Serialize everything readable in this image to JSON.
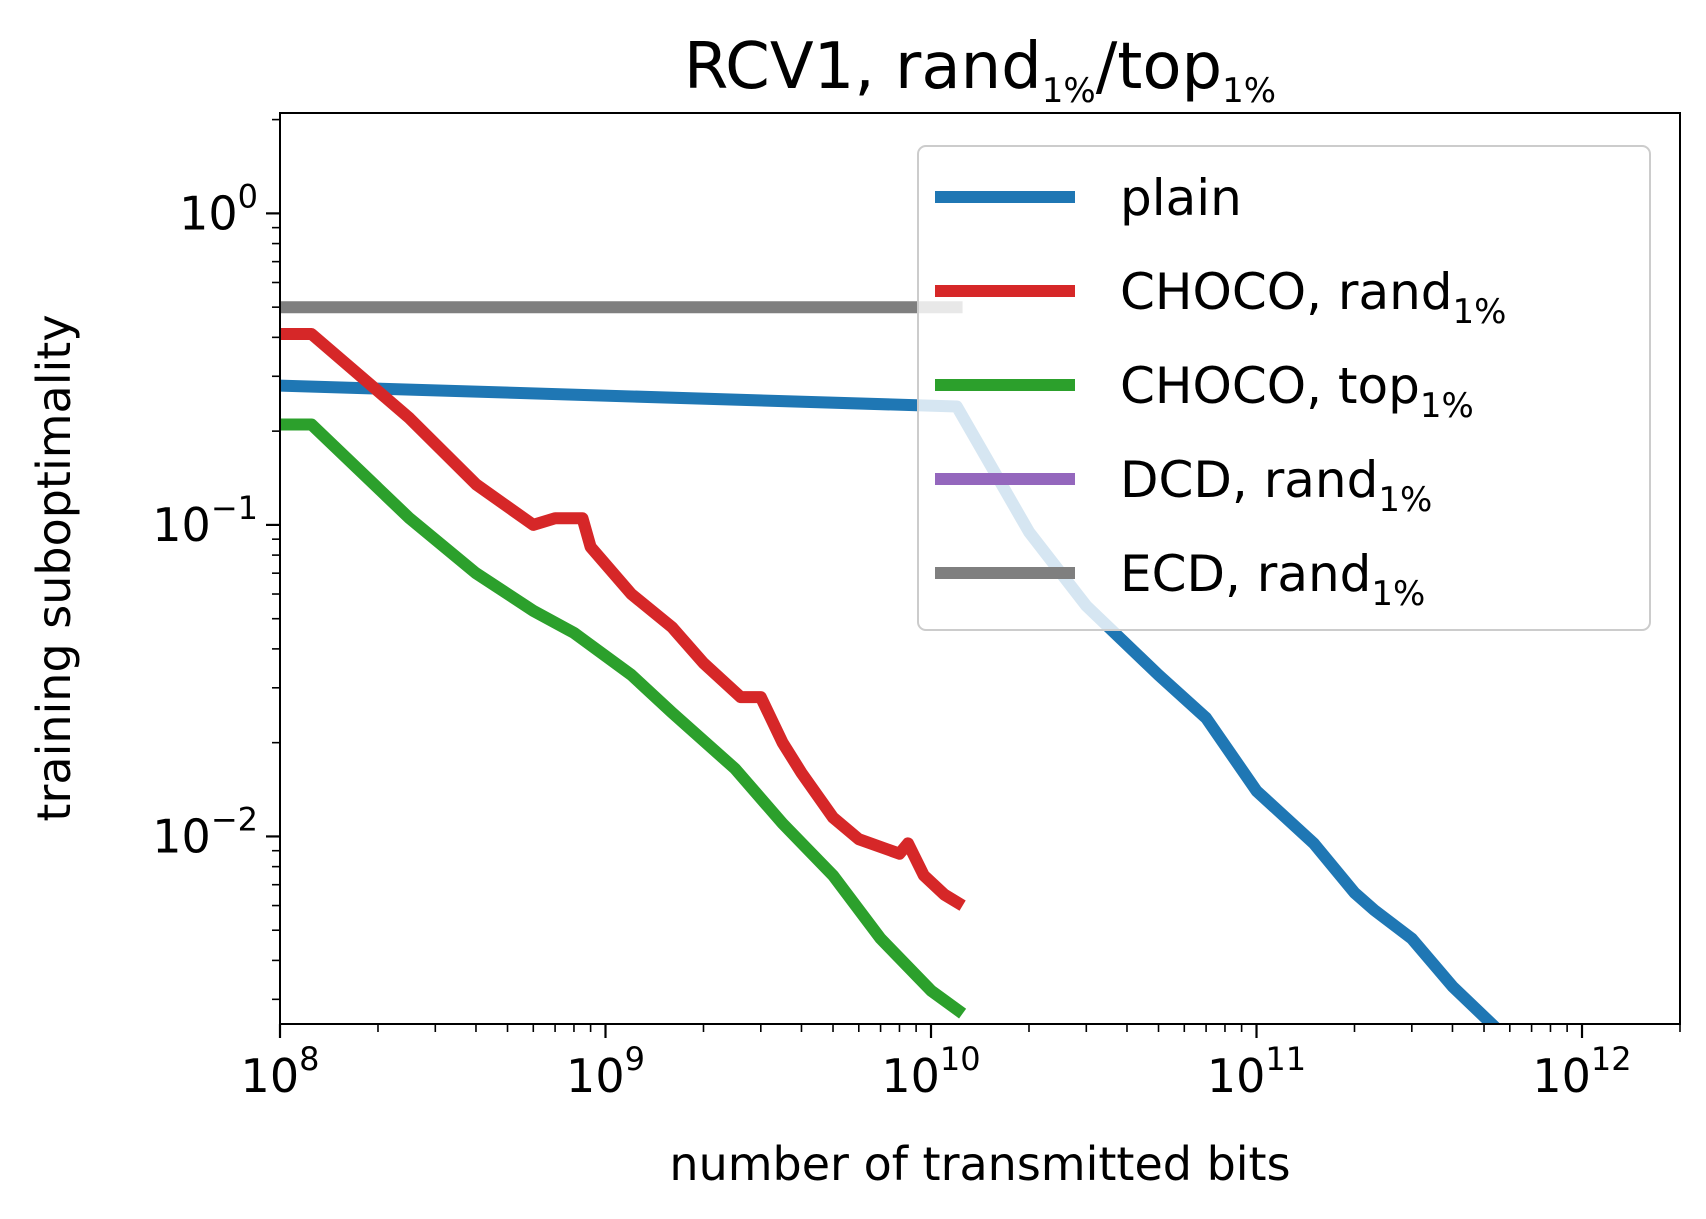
{
  "chart_data": {
    "type": "line",
    "title": {
      "main": "RCV1, rand",
      "sub1": "1%",
      "sep": "/top",
      "sub2": "1%"
    },
    "xlabel": "number of transmitted bits",
    "ylabel": "training suboptimality",
    "x_scale": "log",
    "y_scale": "log",
    "xlim": [
      100000000.0,
      2000000000000.0
    ],
    "ylim": [
      0.0025,
      2.1
    ],
    "grid": false,
    "legend_position": "top-right",
    "x_ticks": [
      {
        "value": 100000000.0,
        "base": "10",
        "exp": "8"
      },
      {
        "value": 1000000000.0,
        "base": "10",
        "exp": "9"
      },
      {
        "value": 10000000000.0,
        "base": "10",
        "exp": "10"
      },
      {
        "value": 100000000000.0,
        "base": "10",
        "exp": "11"
      },
      {
        "value": 1000000000000.0,
        "base": "10",
        "exp": "12"
      }
    ],
    "y_ticks": [
      {
        "value": 1,
        "base": "10",
        "exp": "0"
      },
      {
        "value": 0.1,
        "base": "10",
        "exp": "−1"
      },
      {
        "value": 0.01,
        "base": "10",
        "exp": "−2"
      }
    ],
    "series": [
      {
        "name": "plain",
        "color": "#1f77b4",
        "opacity": 1,
        "x": [
          100000000.0,
          12000000000.0,
          20000000000.0,
          30000000000.0,
          50000000000.0,
          70000000000.0,
          100000000000.0,
          150000000000.0,
          200000000000.0,
          230000000000.0,
          300000000000.0,
          400000000000.0,
          550000000000.0
        ],
        "y": [
          0.28,
          0.24,
          0.095,
          0.055,
          0.033,
          0.024,
          0.014,
          0.0095,
          0.0066,
          0.0058,
          0.0047,
          0.0033,
          0.0024
        ]
      },
      {
        "name": "CHOCO,  rand",
        "sub": "1%",
        "color": "#d62728",
        "opacity": 1,
        "x": [
          100000000.0,
          125000000.0,
          250000000.0,
          400000000.0,
          600000000.0,
          700000000.0,
          850000000.0,
          900000000.0,
          1200000000.0,
          1600000000.0,
          2000000000.0,
          2600000000.0,
          3000000000.0,
          3500000000.0,
          4000000000.0,
          5000000000.0,
          6000000000.0,
          8000000000.0,
          8500000000.0,
          9500000000.0,
          11000000000.0,
          12500000000.0
        ],
        "y": [
          0.41,
          0.41,
          0.22,
          0.135,
          0.1,
          0.105,
          0.105,
          0.085,
          0.06,
          0.047,
          0.036,
          0.028,
          0.028,
          0.02,
          0.016,
          0.0115,
          0.0098,
          0.0088,
          0.0095,
          0.0075,
          0.0065,
          0.006
        ]
      },
      {
        "name": "CHOCO,  top",
        "sub": "1%",
        "color": "#2ca02c",
        "opacity": 1,
        "x": [
          100000000.0,
          125000000.0,
          250000000.0,
          400000000.0,
          600000000.0,
          800000000.0,
          1200000000.0,
          1600000000.0,
          2500000000.0,
          3500000000.0,
          5000000000.0,
          7000000000.0,
          10000000000.0,
          12500000000.0
        ],
        "y": [
          0.21,
          0.21,
          0.105,
          0.07,
          0.053,
          0.045,
          0.033,
          0.025,
          0.0165,
          0.011,
          0.0075,
          0.0047,
          0.0032,
          0.0027
        ]
      },
      {
        "name": "DCD,  rand",
        "sub": "1%",
        "color": "#9467bd",
        "opacity": 1,
        "x": [],
        "y": []
      },
      {
        "name": "ECD,  rand",
        "sub": "1%",
        "color": "#7f7f7f",
        "opacity": 1,
        "x": [
          100000000.0,
          12500000000.0
        ],
        "y": [
          0.5,
          0.5
        ]
      }
    ]
  }
}
